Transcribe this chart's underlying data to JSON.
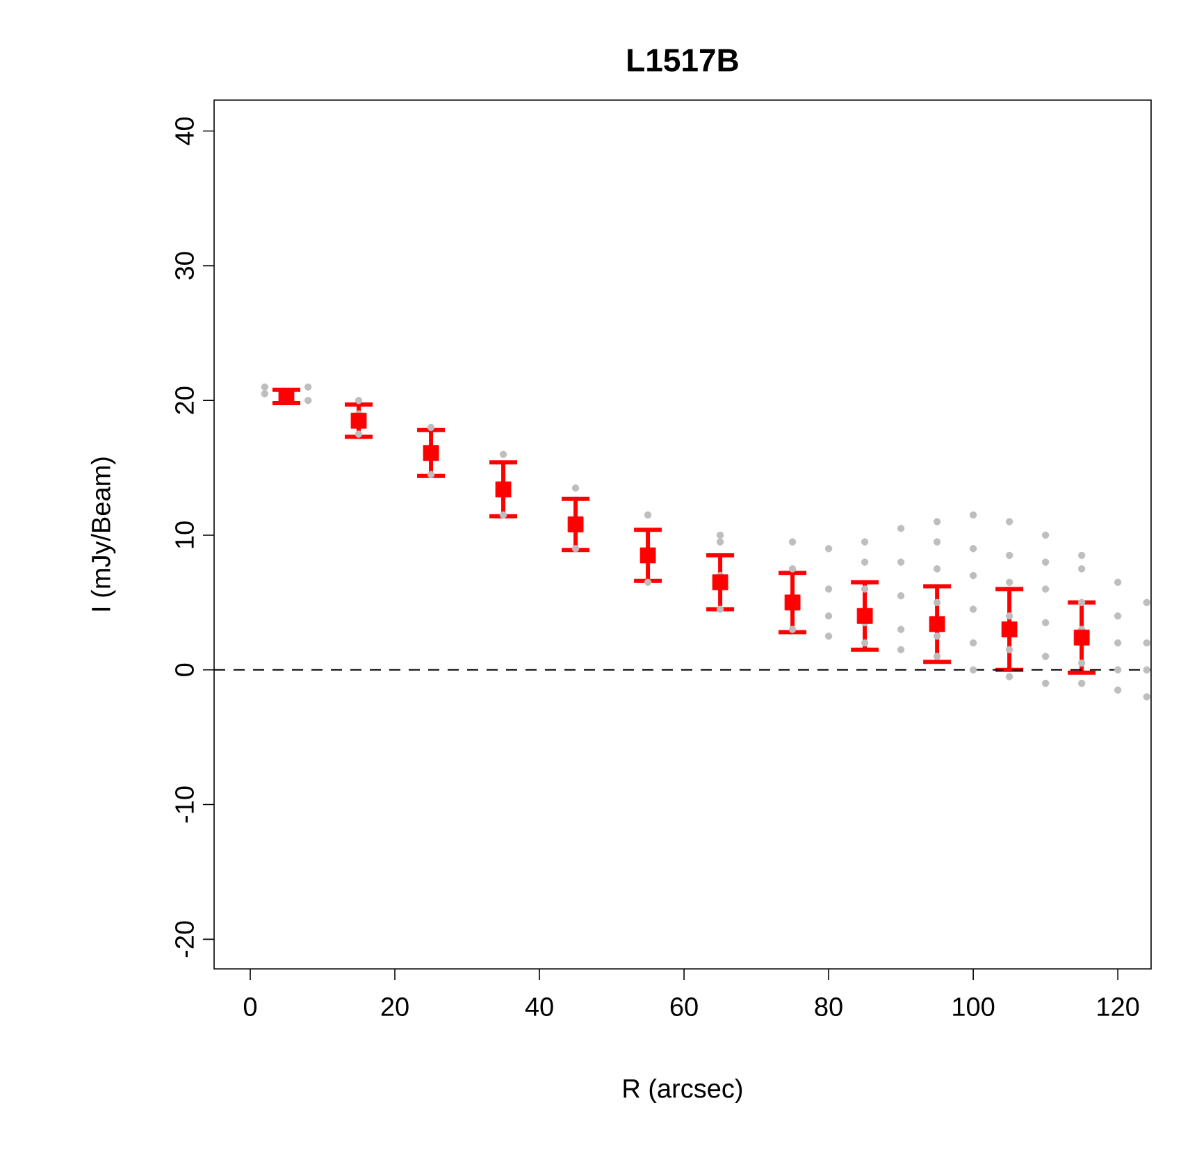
{
  "chart_data": {
    "type": "scatter",
    "title": "L1517B",
    "xlabel": "R (arcsec)",
    "ylabel": "I (mJy/Beam)",
    "xlim": [
      -5,
      124.6
    ],
    "ylim": [
      -22.2,
      42.3
    ],
    "xticks": [
      0,
      20,
      40,
      60,
      80,
      100,
      120
    ],
    "yticks": [
      -20,
      -10,
      0,
      10,
      20,
      30,
      40
    ],
    "series": [
      {
        "color": "#bebebe",
        "marker": "circle",
        "x": [
          2,
          2,
          8,
          8,
          15,
          15,
          15,
          25,
          25,
          35,
          35,
          45,
          45,
          55,
          55,
          65,
          65,
          65,
          65,
          75,
          75,
          75,
          80,
          80,
          80,
          80,
          85,
          85,
          85,
          85,
          85,
          90,
          90,
          90,
          90,
          90,
          95,
          95,
          95,
          95,
          95,
          95,
          100,
          100,
          100,
          100,
          100,
          100,
          105,
          105,
          105,
          105,
          105,
          105,
          110,
          110,
          110,
          110,
          110,
          110,
          115,
          115,
          115,
          115,
          115,
          115,
          120,
          120,
          120,
          120,
          120,
          124,
          124,
          124,
          124
        ],
        "values": [
          20.5,
          21,
          20,
          21,
          17.5,
          19,
          20,
          14.5,
          18,
          11.5,
          16,
          9,
          13.5,
          6.5,
          11.5,
          4.5,
          7,
          9.5,
          10,
          3,
          7.5,
          9.5,
          2.5,
          4,
          6,
          9,
          2,
          3.5,
          6,
          8,
          9.5,
          1.5,
          3,
          5.5,
          8,
          10.5,
          1,
          2.5,
          5,
          7.5,
          9.5,
          11,
          0,
          2,
          4.5,
          7,
          9,
          11.5,
          -0.5,
          1.5,
          4,
          6.5,
          8.5,
          11,
          -1,
          1,
          3.5,
          6,
          8,
          10,
          -1,
          0.5,
          3,
          5,
          7.5,
          8.5,
          -1.5,
          0,
          2,
          4,
          6.5,
          -2,
          0,
          2,
          5
        ]
      },
      {
        "color": "#ff0000",
        "marker": "square",
        "x": [
          5,
          15,
          25,
          35,
          45,
          55,
          65,
          75,
          85,
          95,
          105,
          115
        ],
        "values": [
          20.3,
          18.5,
          16.1,
          13.4,
          10.8,
          8.5,
          6.5,
          5.0,
          4.0,
          3.4,
          3.0,
          2.4
        ],
        "errors": [
          0.5,
          1.2,
          1.7,
          2.0,
          1.9,
          1.9,
          2.0,
          2.2,
          2.5,
          2.8,
          3.0,
          2.6
        ]
      }
    ],
    "ref_lines": [
      {
        "axis": "y",
        "value": 0,
        "color": "#000000",
        "line_style": "dashed"
      }
    ]
  }
}
